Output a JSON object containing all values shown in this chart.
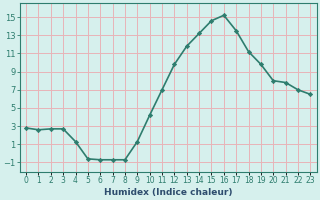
{
  "x": [
    0,
    1,
    2,
    3,
    4,
    5,
    6,
    7,
    8,
    9,
    10,
    11,
    12,
    13,
    14,
    15,
    16,
    17,
    18,
    19,
    20,
    21,
    22,
    23
  ],
  "y": [
    2.8,
    2.6,
    2.7,
    2.7,
    1.3,
    -0.6,
    -0.7,
    -0.7,
    -0.7,
    1.3,
    4.2,
    7.0,
    9.8,
    11.8,
    13.2,
    14.6,
    15.2,
    13.5,
    11.2,
    9.8,
    8.0,
    7.8,
    7.0,
    6.5
  ],
  "line_color": "#2e7d6e",
  "marker": "D",
  "marker_size": 2.2,
  "bg_color": "#d6f0ed",
  "grid_color": "#e8b4b8",
  "xlabel": "Humidex (Indice chaleur)",
  "xlim": [
    -0.5,
    23.5
  ],
  "ylim": [
    -2,
    16.5
  ],
  "yticks": [
    -1,
    1,
    3,
    5,
    7,
    9,
    11,
    13,
    15
  ],
  "xticks": [
    0,
    1,
    2,
    3,
    4,
    5,
    6,
    7,
    8,
    9,
    10,
    11,
    12,
    13,
    14,
    15,
    16,
    17,
    18,
    19,
    20,
    21,
    22,
    23
  ],
  "xtick_labels": [
    "0",
    "1",
    "2",
    "3",
    "4",
    "5",
    "6",
    "7",
    "8",
    "9",
    "10",
    "11",
    "12",
    "13",
    "14",
    "15",
    "16",
    "17",
    "18",
    "19",
    "20",
    "21",
    "22",
    "23"
  ],
  "line_width": 1.2,
  "tick_color": "#2e7d6e",
  "xlabel_color": "#2e4d6e",
  "xlabel_fontsize": 6.5,
  "tick_fontsize": 5.5,
  "ytick_fontsize": 6.0
}
